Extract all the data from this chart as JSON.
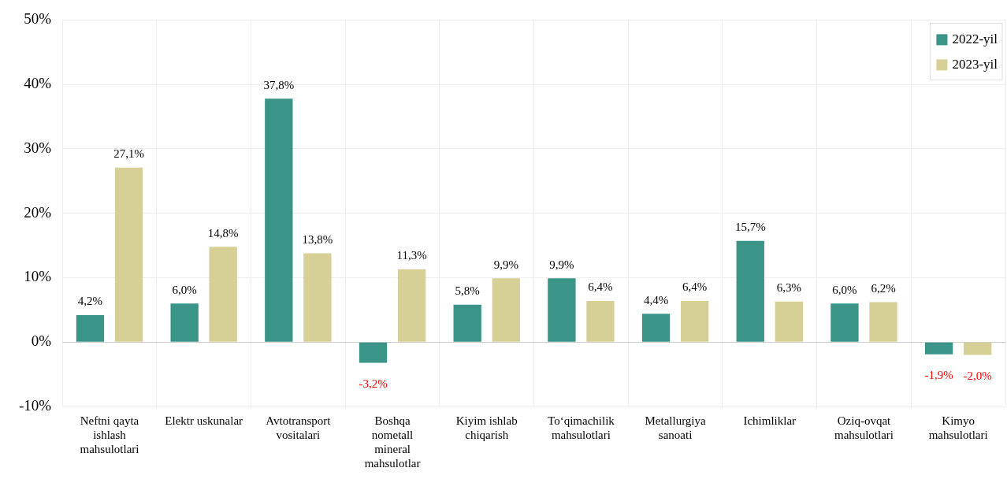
{
  "chart_data": {
    "type": "bar",
    "categories": [
      "Neftni qayta ishlash mahsulotlari",
      "Elektr uskunalar",
      "Avtotransport vositalari",
      "Boshqa nometall mineral mahsulotlar",
      "Kiyim ishlab chiqarish",
      "To‘qimachilik mahsulotlari",
      "Metallurgiya sanoati",
      "Ichimliklar",
      "Oziq-ovqat mahsulotlari",
      "Kimyo mahsulotlari"
    ],
    "series": [
      {
        "name": "2022-yil",
        "color": "#3a9488",
        "values": [
          4.2,
          6.0,
          37.8,
          -3.2,
          5.8,
          9.9,
          4.4,
          15.7,
          6.0,
          -1.9
        ],
        "value_labels": [
          "4,2%",
          "6,0%",
          "37,8%",
          "-3,2%",
          "5,8%",
          "9,9%",
          "4,4%",
          "15,7%",
          "6,0%",
          "-1,9%"
        ]
      },
      {
        "name": "2023-yil",
        "color": "#d6cf96",
        "values": [
          27.1,
          14.8,
          13.8,
          11.3,
          9.9,
          6.4,
          6.4,
          6.3,
          6.2,
          -2.0
        ],
        "value_labels": [
          "27,1%",
          "14,8%",
          "13,8%",
          "11,3%",
          "9,9%",
          "6,4%",
          "6,4%",
          "6,3%",
          "6,2%",
          "-2,0%"
        ]
      }
    ],
    "ylim": [
      -10,
      50
    ],
    "yticks": [
      {
        "value": -10,
        "label": "-10%"
      },
      {
        "value": 0,
        "label": "0%"
      },
      {
        "value": 10,
        "label": "10%"
      },
      {
        "value": 20,
        "label": "20%"
      },
      {
        "value": 30,
        "label": "30%"
      },
      {
        "value": 40,
        "label": "40%"
      },
      {
        "value": 50,
        "label": "50%"
      }
    ],
    "grid": true,
    "legend": "top right"
  }
}
